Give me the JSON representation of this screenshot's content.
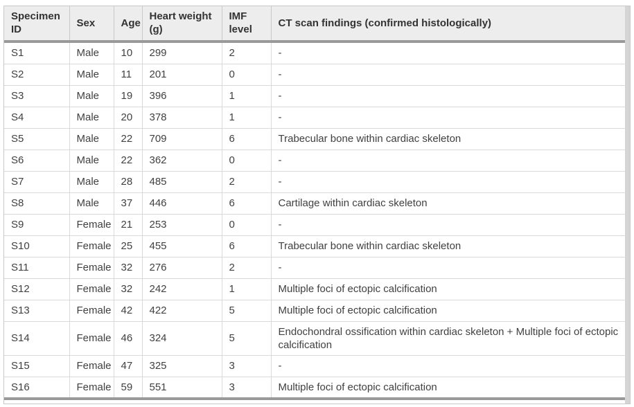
{
  "table": {
    "columns": [
      {
        "key": "id",
        "label": "Specimen ID"
      },
      {
        "key": "sex",
        "label": "Sex"
      },
      {
        "key": "age",
        "label": "Age"
      },
      {
        "key": "weight",
        "label": "Heart weight (g)"
      },
      {
        "key": "imf",
        "label": "IMF level"
      },
      {
        "key": "findings",
        "label": "CT scan findings (confirmed histologically)"
      }
    ],
    "rows": [
      [
        "S1",
        "Male",
        "10",
        "299",
        "2",
        "-"
      ],
      [
        "S2",
        "Male",
        "11",
        "201",
        "0",
        "-"
      ],
      [
        "S3",
        "Male",
        "19",
        "396",
        "1",
        "-"
      ],
      [
        "S4",
        "Male",
        "20",
        "378",
        "1",
        "-"
      ],
      [
        "S5",
        "Male",
        "22",
        "709",
        "6",
        "Trabecular bone within cardiac skeleton"
      ],
      [
        "S6",
        "Male",
        "22",
        "362",
        "0",
        "-"
      ],
      [
        "S7",
        "Male",
        "28",
        "485",
        "2",
        "-"
      ],
      [
        "S8",
        "Male",
        "37",
        "446",
        "6",
        "Cartilage within cardiac skeleton"
      ],
      [
        "S9",
        "Female",
        "21",
        "253",
        "0",
        "-"
      ],
      [
        "S10",
        "Female",
        "25",
        "455",
        "6",
        "Trabecular bone within cardiac skeleton"
      ],
      [
        "S11",
        "Female",
        "32",
        "276",
        "2",
        "-"
      ],
      [
        "S12",
        "Female",
        "32",
        "242",
        "1",
        "Multiple foci of ectopic calcification"
      ],
      [
        "S13",
        "Female",
        "42",
        "422",
        "5",
        "Multiple foci of ectopic calcification"
      ],
      [
        "S14",
        "Female",
        "46",
        "324",
        "5",
        "Endochondral ossification within cardiac skeleton + Multiple foci of ectopic calcification"
      ],
      [
        "S15",
        "Female",
        "47",
        "325",
        "3",
        "-"
      ],
      [
        "S16",
        "Female",
        "59",
        "551",
        "3",
        "Multiple foci of ectopic calcification"
      ]
    ]
  },
  "colors": {
    "header_background": "#ededed",
    "thick_rule": "#999999",
    "cell_border": "#d9d9d9",
    "frame_border": "#c8c8c8",
    "scrollbar_track": "#d5d5d5",
    "header_text": "#333333",
    "body_text": "#404040"
  }
}
